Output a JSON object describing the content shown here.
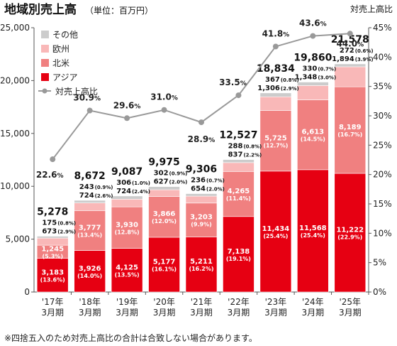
{
  "chart_data": {
    "type": "bar",
    "title": "地域別売上高",
    "unit": "（単位：百万円）",
    "right_axis_title": "対売上高比",
    "ylim": [
      0,
      25000
    ],
    "yticks": [
      "0",
      "5,000",
      "10,000",
      "15,000",
      "20,000",
      "25,000"
    ],
    "y2lim": [
      0,
      45
    ],
    "y2ticks": [
      "0%",
      "5%",
      "10%",
      "15%",
      "20%",
      "25%",
      "30%",
      "35%",
      "40%",
      "45%"
    ],
    "categories": [
      {
        "year": "'17年",
        "period": "3月期"
      },
      {
        "year": "'18年",
        "period": "3月期"
      },
      {
        "year": "'19年",
        "period": "3月期"
      },
      {
        "year": "'20年",
        "period": "3月期"
      },
      {
        "year": "'21年",
        "period": "3月期"
      },
      {
        "year": "'22年",
        "period": "3月期"
      },
      {
        "year": "'23年",
        "period": "3月期"
      },
      {
        "year": "'24年",
        "period": "3月期"
      },
      {
        "year": "'25年",
        "period": "3月期"
      }
    ],
    "totals": [
      "5,278",
      "8,672",
      "9,087",
      "9,975",
      "9,306",
      "12,527",
      "18,834",
      "19,860",
      "21,578"
    ],
    "series": [
      {
        "name": "アジア",
        "color": "#e60012",
        "values": [
          3183,
          3926,
          4125,
          5177,
          5211,
          7138,
          11434,
          11568,
          11222
        ],
        "labels": [
          "3,183",
          "3,926",
          "4,125",
          "5,177",
          "5,211",
          "7,138",
          "11,434",
          "11,568",
          "11,222"
        ],
        "pct": [
          "(13.6%)",
          "(14.0%)",
          "(13.5%)",
          "(16.1%)",
          "(16.2%)",
          "(19.1%)",
          "(25.4%)",
          "(25.4%)",
          "(22.9%)"
        ]
      },
      {
        "name": "北米",
        "color": "#f08080",
        "values": [
          1245,
          3777,
          3930,
          3866,
          3203,
          4265,
          5725,
          6613,
          8189
        ],
        "labels": [
          "1,245",
          "3,777",
          "3,930",
          "3,866",
          "3,203",
          "4,265",
          "5,725",
          "6,613",
          "8,189"
        ],
        "pct": [
          "(5.3%)",
          "(13.4%)",
          "(12.8%)",
          "(12.0%)",
          "(9.9%)",
          "(11.4%)",
          "(12.7%)",
          "(14.5%)",
          "(16.7%)"
        ]
      },
      {
        "name": "欧州",
        "color": "#f9b8b8",
        "values": [
          673,
          724,
          724,
          627,
          654,
          837,
          1306,
          1348,
          1894
        ],
        "labels": [
          "673",
          "724",
          "724",
          "627",
          "654",
          "837",
          "1,306",
          "1,348",
          "1,894"
        ],
        "pct": [
          "(2.9%)",
          "(2.6%)",
          "(2.4%)",
          "(2.0%)",
          "(2.0%)",
          "(2.2%)",
          "(2.9%)",
          "(3.0%)",
          "(3.9%)"
        ]
      },
      {
        "name": "その他",
        "color": "#cccccc",
        "values": [
          175,
          243,
          306,
          302,
          236,
          288,
          367,
          330,
          272
        ],
        "labels": [
          "175",
          "243",
          "306",
          "302",
          "236",
          "288",
          "367",
          "330",
          "272"
        ],
        "pct": [
          "(0.8%)",
          "(0.9%)",
          "(1.0%)",
          "(0.9%)",
          "(0.7%)",
          "(0.8%)",
          "(0.8%)",
          "(0.7%)",
          "(0.6%)"
        ]
      }
    ],
    "ratio_series": {
      "name": "対売上高比",
      "color": "#999999",
      "values": [
        22.6,
        30.9,
        29.6,
        31.0,
        28.9,
        33.5,
        41.8,
        43.6,
        44.0
      ],
      "labels": [
        {
          "num": "22.6",
          "unit": "%"
        },
        {
          "num": "30.9",
          "unit": "%"
        },
        {
          "num": "29.6",
          "unit": "%"
        },
        {
          "num": "31.0",
          "unit": "%"
        },
        {
          "num": "28.9",
          "unit": "%"
        },
        {
          "num": "33.5",
          "unit": "%"
        },
        {
          "num": "41.8",
          "unit": "%"
        },
        {
          "num": "43.6",
          "unit": "%"
        },
        {
          "num": "44.0",
          "unit": "%"
        }
      ]
    },
    "legend_placement": "top-left",
    "grid": false,
    "footnote": "※四捨五入のため対売上高比の合計は合致しない場合があります。"
  }
}
